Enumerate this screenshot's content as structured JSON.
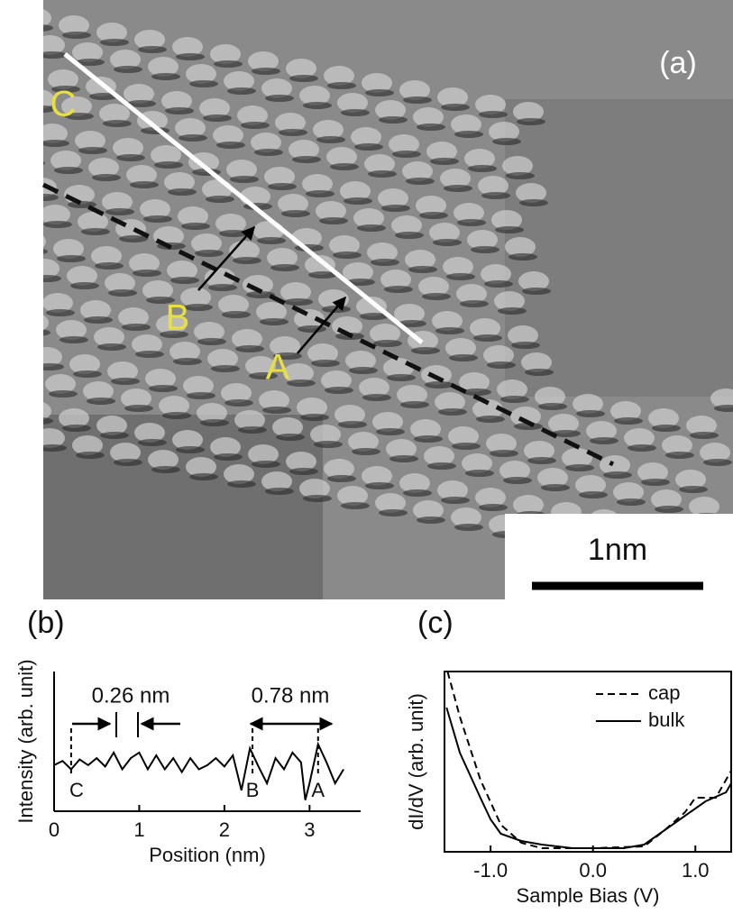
{
  "chart_data": [
    {
      "type": "image",
      "panel_label": "(a)",
      "point_labels": [
        "A",
        "B",
        "C"
      ],
      "scale_bar": "1nm"
    },
    {
      "type": "line",
      "panel_label": "(b)",
      "ylabel": "Intensity (arb. unit)",
      "xlabel": "Position (nm)",
      "x": [
        0,
        0.1,
        0.2,
        0.3,
        0.4,
        0.5,
        0.6,
        0.7,
        0.8,
        0.9,
        1.0,
        1.1,
        1.2,
        1.3,
        1.4,
        1.5,
        1.6,
        1.7,
        1.8,
        1.9,
        2.0,
        2.1,
        2.2,
        2.3,
        2.4,
        2.5,
        2.6,
        2.7,
        2.8,
        2.9,
        2.95,
        3.0,
        3.1,
        3.2,
        3.3,
        3.4
      ],
      "values": [
        0.33,
        0.36,
        0.3,
        0.37,
        0.33,
        0.38,
        0.32,
        0.42,
        0.3,
        0.38,
        0.42,
        0.3,
        0.4,
        0.3,
        0.38,
        0.28,
        0.38,
        0.3,
        0.33,
        0.38,
        0.32,
        0.4,
        0.15,
        0.45,
        0.32,
        0.2,
        0.38,
        0.3,
        0.42,
        0.35,
        0.08,
        0.2,
        0.48,
        0.35,
        0.2,
        0.3
      ],
      "color": "#000000",
      "xlim": [
        0,
        3.6
      ],
      "ylim": [
        0,
        1
      ],
      "xticks": [
        0,
        1,
        2,
        3
      ],
      "annotations": [
        "0.26 nm",
        "0.78 nm"
      ],
      "markers": [
        {
          "label": "C",
          "x": 0.2
        },
        {
          "label": "B",
          "x": 2.33
        },
        {
          "label": "A",
          "x": 3.1
        }
      ]
    },
    {
      "type": "line",
      "panel_label": "(c)",
      "ylabel": "dI/dV (arb. unit)",
      "xlabel": "Sample Bias (V)",
      "xlim": [
        -1.45,
        1.35
      ],
      "ylim": [
        0,
        1
      ],
      "xticks": [
        {
          "value": -1,
          "label": "-1.0"
        },
        {
          "value": 0,
          "label": "0.0"
        },
        {
          "value": 1,
          "label": "1.0"
        }
      ],
      "legend": "upper right",
      "series": [
        {
          "name": "cap",
          "color": "#000000",
          "dash": true,
          "x": [
            -1.42,
            -1.3,
            -1.1,
            -0.9,
            -0.7,
            -0.5,
            0,
            0.5,
            0.7,
            0.9,
            1.0,
            1.2,
            1.35
          ],
          "values": [
            1.0,
            0.75,
            0.4,
            0.15,
            0.05,
            0.02,
            0.02,
            0.03,
            0.12,
            0.22,
            0.3,
            0.3,
            0.45
          ]
        },
        {
          "name": "bulk",
          "color": "#000000",
          "dash": false,
          "x": [
            -1.43,
            -1.3,
            -1.1,
            -1.0,
            -0.9,
            -0.7,
            -0.5,
            -0.2,
            0,
            0.3,
            0.5,
            0.7,
            0.9,
            1.1,
            1.3,
            1.35
          ],
          "values": [
            0.8,
            0.55,
            0.3,
            0.18,
            0.1,
            0.06,
            0.04,
            0.02,
            0.02,
            0.02,
            0.04,
            0.12,
            0.2,
            0.28,
            0.33,
            0.38
          ]
        }
      ]
    }
  ]
}
